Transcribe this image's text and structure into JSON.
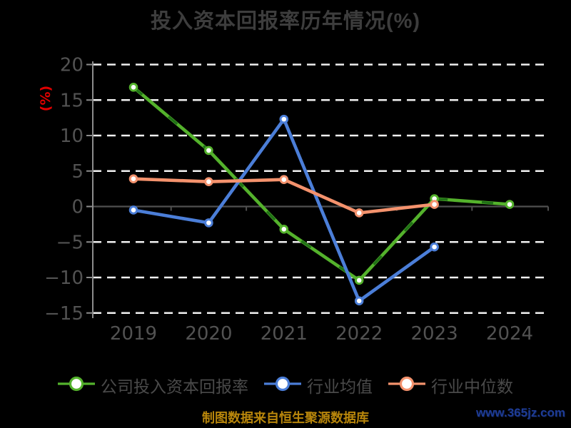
{
  "title": "投入资本回报率历年情况(%)",
  "footer_note": "制图数据来自恒生聚源数据库",
  "watermark": "www.365jz.com",
  "colors": {
    "background": "#000000",
    "title_text": "#3d3d3d",
    "tick_text": "#525252",
    "legend_text": "#4a4a4a",
    "grid_line": "#f0f0f0",
    "zero_line": "#4f4f4f",
    "axis_line": "#8c8c8c",
    "ylabel_red": "#e00000",
    "footer_gold": "#b8860b",
    "watermark_blue": "#1e3c96",
    "marker_fill": "#ffffff",
    "company_green": "#54b22c",
    "company_green_dash": "#1d6e15",
    "industry_blue": "#4b7ed8",
    "median_orange": "#f4926d"
  },
  "chart_data": {
    "type": "line",
    "title": "投入资本回报率历年情况(%)",
    "ylabel": "(%)",
    "xlabel": "",
    "categories": [
      "2019",
      "2020",
      "2021",
      "2022",
      "2023",
      "2024"
    ],
    "series": [
      {
        "name": "公司投入资本回报率",
        "color": "#54b22c",
        "dash_overlay": true,
        "dash_overlay_color": "#1d6e15",
        "values": [
          16.8,
          7.9,
          -3.2,
          -10.4,
          1.1,
          0.3
        ]
      },
      {
        "name": "行业均值",
        "color": "#4b7ed8",
        "dash_overlay": false,
        "values": [
          -0.5,
          -2.3,
          12.3,
          -13.3,
          -5.7,
          null
        ]
      },
      {
        "name": "行业中位数",
        "color": "#f4926d",
        "dash_overlay": false,
        "values": [
          3.9,
          3.5,
          3.8,
          -0.9,
          0.3,
          null
        ]
      }
    ],
    "ylim": [
      -15,
      20
    ],
    "yticks": [
      20,
      15,
      10,
      5,
      0,
      -5,
      -10,
      -15
    ],
    "grid": "horizontal-dashed-white",
    "legend_position": "bottom",
    "marker": "circle-white-fill"
  }
}
